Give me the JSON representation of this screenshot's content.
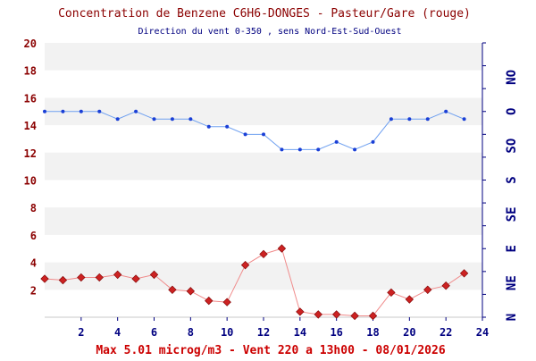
{
  "chart_data": {
    "type": "line",
    "title": "Concentration de Benzene C6H6-DONGES - Pasteur/Gare (rouge)",
    "subtitle": "Direction du vent 0-350 , sens Nord-Est-Sud-Ouest",
    "footer": "Max 5.01 microg/m3 - Vent 220  a 13h00 - 08/01/2026",
    "xlim": [
      0,
      24
    ],
    "x_ticks": [
      "2",
      "4",
      "6",
      "8",
      "10",
      "12",
      "14",
      "16",
      "18",
      "20",
      "22",
      "24"
    ],
    "left_axis": {
      "ylim": [
        0,
        20
      ],
      "ticks": [
        "2",
        "4",
        "6",
        "8",
        "10",
        "12",
        "14",
        "16",
        "18",
        "20"
      ]
    },
    "right_axis": {
      "ylim": [
        0,
        360
      ],
      "ticks": [
        {
          "label": "N",
          "value": 0
        },
        {
          "label": "NE",
          "value": 45
        },
        {
          "label": "E",
          "value": 90
        },
        {
          "label": "SE",
          "value": 135
        },
        {
          "label": "S",
          "value": 180
        },
        {
          "label": "SO",
          "value": 225
        },
        {
          "label": "O",
          "value": 270
        },
        {
          "label": "NO",
          "value": 315
        }
      ]
    },
    "grid": "horizontal alternating bands",
    "colors": {
      "title": "#8b0000",
      "footer": "#cc0000",
      "subtitle": "#000080",
      "left_axis_labels": "#8b0000",
      "right_axis_labels": "#000080",
      "x_labels": "#000080",
      "band": "#f2f2f2",
      "benzene": "#cc2222",
      "benzene_line": "#f08a8a",
      "wind": "#1a3fd6",
      "wind_line": "#6fa0f0"
    },
    "series": [
      {
        "key": "benzene",
        "axis": "left",
        "x": [
          0,
          1,
          2,
          3,
          4,
          5,
          6,
          7,
          8,
          9,
          10,
          11,
          12,
          13,
          14,
          15,
          16,
          17,
          18,
          19,
          20,
          21,
          22,
          23
        ],
        "values": [
          2.8,
          2.7,
          2.9,
          2.9,
          3.1,
          2.8,
          3.1,
          2.0,
          1.9,
          1.2,
          1.1,
          3.8,
          4.6,
          5.01,
          0.4,
          0.2,
          0.2,
          0.1,
          0.1,
          1.8,
          1.3,
          2.0,
          2.3,
          3.2
        ]
      },
      {
        "key": "wind",
        "axis": "right",
        "x": [
          0,
          1,
          2,
          3,
          4,
          5,
          6,
          7,
          8,
          9,
          10,
          11,
          12,
          13,
          14,
          15,
          16,
          17,
          18,
          19,
          20,
          21,
          22,
          23
        ],
        "values": [
          270,
          270,
          270,
          270,
          260,
          270,
          260,
          260,
          260,
          250,
          250,
          240,
          240,
          220,
          220,
          220,
          230,
          220,
          230,
          260,
          260,
          260,
          270,
          260
        ]
      }
    ]
  }
}
